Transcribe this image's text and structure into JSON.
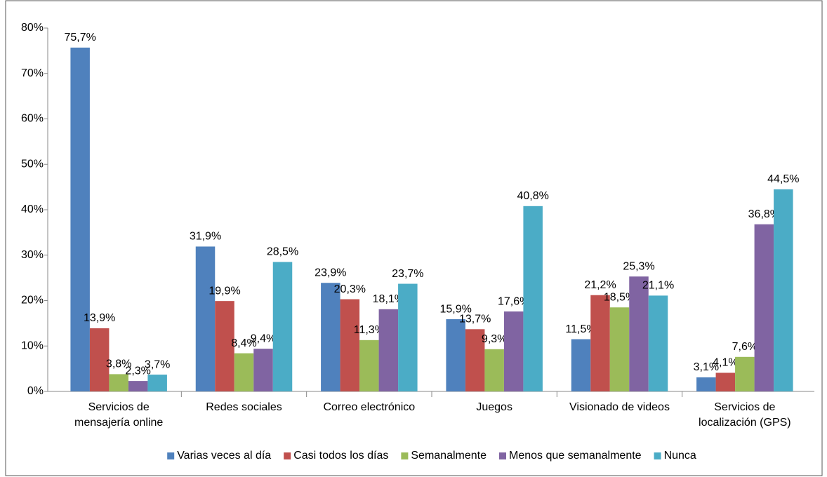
{
  "chart_data": {
    "type": "bar",
    "categories": [
      "Servicios de mensajería online",
      "Redes sociales",
      "Correo electrónico",
      "Juegos",
      "Visionado de videos",
      "Servicios de localización (GPS)"
    ],
    "series": [
      {
        "name": "Varias veces al día",
        "color": "#4f81bd",
        "values": [
          75.7,
          31.9,
          23.9,
          15.9,
          11.5,
          3.1
        ],
        "value_labels": [
          "75,7%",
          "31,9%",
          "23,9%",
          "15,9%",
          "11,5%",
          "3,1%"
        ]
      },
      {
        "name": "Casi todos los días",
        "color": "#c0504d",
        "values": [
          13.9,
          19.9,
          20.3,
          13.7,
          21.2,
          4.1
        ],
        "value_labels": [
          "13,9%",
          "19,9%",
          "20,3%",
          "13,7%",
          "21,2%",
          "4,1%"
        ]
      },
      {
        "name": "Semanalmente",
        "color": "#9bbb59",
        "values": [
          3.8,
          8.4,
          11.3,
          9.3,
          18.5,
          7.6
        ],
        "value_labels": [
          "3,8%",
          "8,4%",
          "11,3%",
          "9,3%",
          "18,5%",
          "7,6%"
        ]
      },
      {
        "name": "Menos que semanalmente",
        "color": "#8064a2",
        "values": [
          2.3,
          9.4,
          18.1,
          17.6,
          25.3,
          36.8
        ],
        "value_labels": [
          "2,3%",
          "9,4%",
          "18,1%",
          "17,6%",
          "25,3%",
          "36,8%"
        ]
      },
      {
        "name": "Nunca",
        "color": "#4bacc6",
        "values": [
          3.7,
          28.5,
          23.7,
          40.8,
          21.1,
          44.5
        ],
        "value_labels": [
          "3,7%",
          "28,5%",
          "23,7%",
          "40,8%",
          "21,1%",
          "44,5%"
        ]
      }
    ],
    "ylim": [
      0,
      80
    ],
    "yticks": [
      {
        "value": 0,
        "label": "0%"
      },
      {
        "value": 10,
        "label": "10%"
      },
      {
        "value": 20,
        "label": "20%"
      },
      {
        "value": 30,
        "label": "30%"
      },
      {
        "value": 40,
        "label": "40%"
      },
      {
        "value": 50,
        "label": "50%"
      },
      {
        "value": 60,
        "label": "60%"
      },
      {
        "value": 70,
        "label": "70%"
      },
      {
        "value": 80,
        "label": "80%"
      }
    ],
    "legend": "bottom"
  }
}
